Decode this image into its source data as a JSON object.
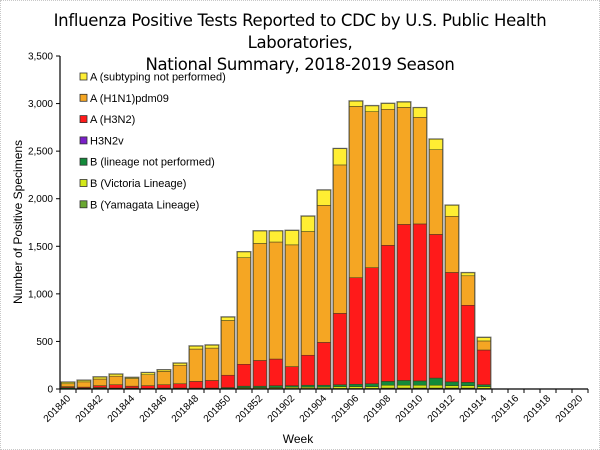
{
  "chart_data": {
    "type": "bar",
    "stacked": true,
    "title_lines": [
      "Influenza Positive Tests Reported to CDC by U.S. Public Health Laboratories,",
      "National Summary, 2018-2019 Season"
    ],
    "xlabel": "Week",
    "ylabel": "Number of Positive Specimens",
    "ylim": [
      0,
      3500
    ],
    "yticks": [
      0,
      500,
      1000,
      1500,
      2000,
      2500,
      3000,
      3500
    ],
    "ytick_labels": [
      "0",
      "500",
      "1,000",
      "1,500",
      "2,000",
      "2,500",
      "3,000",
      "3,500"
    ],
    "categories": [
      "201840",
      "201841",
      "201842",
      "201843",
      "201844",
      "201845",
      "201846",
      "201847",
      "201848",
      "201849",
      "201850",
      "201851",
      "201852",
      "201901",
      "201902",
      "201903",
      "201904",
      "201905",
      "201906",
      "201907",
      "201908",
      "201909",
      "201910",
      "201911",
      "201912",
      "201913",
      "201914",
      "201915",
      "201916",
      "201917",
      "201918",
      "201919",
      "201920"
    ],
    "xtick_labels": [
      "201840",
      "201842",
      "201844",
      "201846",
      "201848",
      "201850",
      "201852",
      "201902",
      "201904",
      "201906",
      "201908",
      "201910",
      "201912",
      "201914",
      "201916",
      "201918",
      "201920"
    ],
    "grid": false,
    "legend_position": "top-left",
    "series": [
      {
        "name": "B (Yamagata Lineage)",
        "color": "#6aa832",
        "values": [
          0,
          0,
          5,
          0,
          0,
          0,
          0,
          0,
          0,
          0,
          0,
          5,
          5,
          5,
          5,
          5,
          5,
          5,
          5,
          5,
          10,
          10,
          10,
          10,
          10,
          10,
          5,
          0,
          0,
          0,
          0,
          0,
          0
        ]
      },
      {
        "name": "B (Victoria Lineage)",
        "color": "#d4e81a",
        "values": [
          0,
          0,
          0,
          0,
          0,
          0,
          0,
          0,
          0,
          0,
          0,
          10,
          10,
          10,
          15,
          15,
          15,
          20,
          20,
          20,
          30,
          30,
          30,
          30,
          25,
          25,
          20,
          0,
          0,
          0,
          0,
          0,
          0
        ]
      },
      {
        "name": "B (lineage not performed)",
        "color": "#138a3a",
        "values": [
          15,
          10,
          10,
          10,
          10,
          5,
          10,
          10,
          10,
          10,
          15,
          15,
          15,
          20,
          15,
          20,
          20,
          20,
          25,
          30,
          40,
          50,
          45,
          75,
          40,
          35,
          20,
          0,
          0,
          0,
          0,
          0,
          0
        ]
      },
      {
        "name": "H3N2v",
        "color": "#7a1fc8",
        "values": [
          0,
          0,
          0,
          0,
          0,
          0,
          0,
          0,
          0,
          0,
          0,
          0,
          0,
          0,
          0,
          0,
          0,
          0,
          0,
          0,
          0,
          0,
          0,
          0,
          0,
          0,
          0,
          0,
          0,
          0,
          0,
          0,
          0
        ]
      },
      {
        "name": "A (H3N2)",
        "color": "#ff1a1a",
        "values": [
          10,
          10,
          20,
          35,
          20,
          30,
          35,
          45,
          70,
          80,
          130,
          230,
          270,
          280,
          200,
          315,
          450,
          750,
          1120,
          1220,
          1430,
          1640,
          1650,
          1510,
          1150,
          810,
          365,
          0,
          0,
          0,
          0,
          0,
          0
        ]
      },
      {
        "name": "A (H1N1)pdm09",
        "color": "#f5a623",
        "values": [
          30,
          55,
          70,
          90,
          80,
          115,
          140,
          195,
          340,
          340,
          575,
          1120,
          1230,
          1230,
          1280,
          1300,
          1440,
          1560,
          1800,
          1640,
          1430,
          1230,
          1120,
          890,
          590,
          310,
          95,
          0,
          0,
          0,
          0,
          0,
          0
        ]
      },
      {
        "name": "A (subtyping not performed)",
        "color": "#ffee33",
        "values": [
          15,
          15,
          20,
          20,
          10,
          20,
          15,
          20,
          30,
          30,
          35,
          60,
          130,
          115,
          150,
          160,
          160,
          170,
          55,
          60,
          60,
          55,
          100,
          110,
          115,
          30,
          35,
          0,
          0,
          0,
          0,
          0,
          0
        ]
      }
    ],
    "legend_order": [
      "A (subtyping not performed)",
      "A (H1N1)pdm09",
      "A (H3N2)",
      "H3N2v",
      "B (lineage not performed)",
      "B (Victoria Lineage)",
      "B (Yamagata Lineage)"
    ]
  }
}
